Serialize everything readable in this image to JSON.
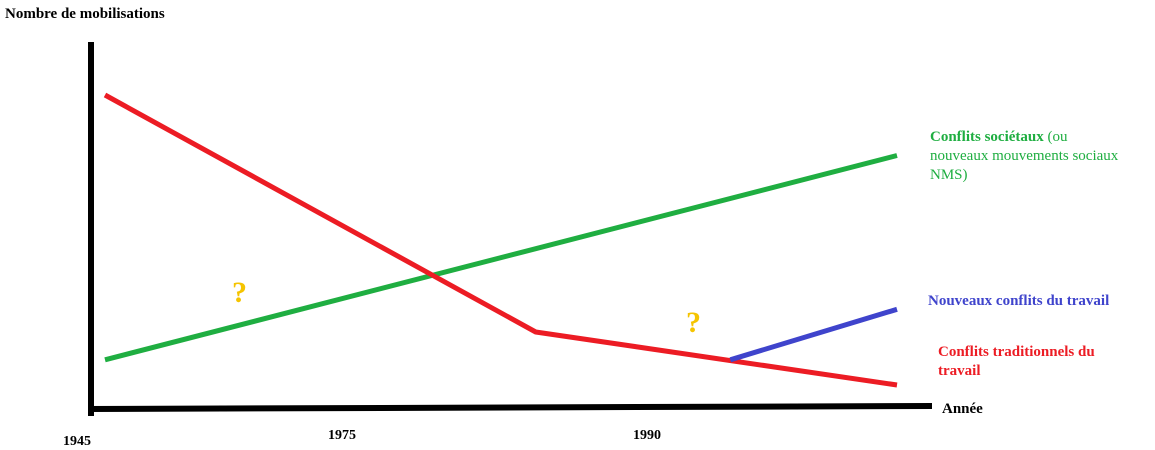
{
  "chart_data": {
    "type": "line",
    "title": "",
    "ylabel": "Nombre de mobilisations",
    "xlabel": "Année",
    "x_ticks": [
      "1945",
      "1975",
      "1990"
    ],
    "series": [
      {
        "label_bold": "Conflits sociétaux",
        "label_rest": " (ou nouveaux mouvements sociaux NMS)",
        "color": "#1fae41",
        "points": [
          [
            1945,
            1.0
          ],
          [
            2002,
            9.1
          ]
        ]
      },
      {
        "label_bold": "Nouveaux conflits du travail",
        "label_rest": "",
        "color": "#3f44cc",
        "points": [
          [
            1990,
            1.0
          ],
          [
            2002,
            3.0
          ]
        ]
      },
      {
        "label_bold": "Conflits traditionnels du travail",
        "label_rest": "",
        "color": "#ec1c24",
        "points": [
          [
            1945,
            11.5
          ],
          [
            1976,
            2.1
          ],
          [
            2002,
            0.0
          ]
        ]
      }
    ],
    "annotations": [
      "?",
      "?"
    ],
    "grid": false,
    "legend": "right, inline labels"
  }
}
